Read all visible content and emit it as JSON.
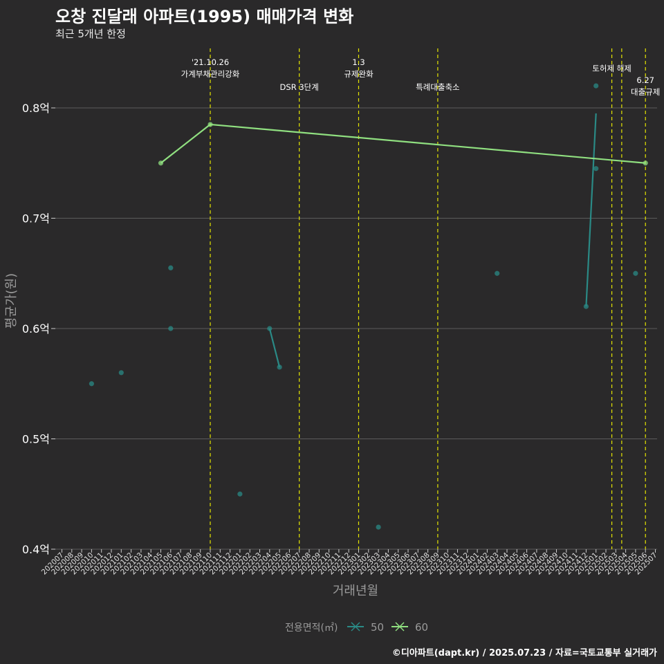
{
  "header": {
    "title": "오창 진달래 아파트(1995) 매매가격 변화",
    "subtitle": "최근 5개년 한정"
  },
  "caption": "©디아파트(dapt.kr) / 2025.07.23 / 자료=국토교통부 실거래가",
  "colors": {
    "background": "#2a292a",
    "grid": "#5c5c5c",
    "event_line": "#e6e600",
    "series_50": "#2a8a86",
    "series_60": "#90e080"
  },
  "chart_data": {
    "type": "line",
    "title": "오창 진달래 아파트(1995) 매매가격 변화",
    "subtitle": "최근 5개년 한정",
    "xlabel": "거래년월",
    "ylabel": "평균가(원)",
    "x_ticks": [
      "202007",
      "202008",
      "202009",
      "202010",
      "202011",
      "202012",
      "202101",
      "202102",
      "202103",
      "202104",
      "202105",
      "202106",
      "202107",
      "202108",
      "202109",
      "202110",
      "202111",
      "202112",
      "202201",
      "202202",
      "202203",
      "202204",
      "202205",
      "202206",
      "202207",
      "202208",
      "202209",
      "202210",
      "202211",
      "202212",
      "202301",
      "202302",
      "202303",
      "202304",
      "202305",
      "202306",
      "202307",
      "202308",
      "202309",
      "202310",
      "202311",
      "202312",
      "202401",
      "202402",
      "202403",
      "202404",
      "202405",
      "202406",
      "202407",
      "202408",
      "202409",
      "202410",
      "202411",
      "202412",
      "202501",
      "202502",
      "202503",
      "202504",
      "202505",
      "202506",
      "202507"
    ],
    "y_ticks": [
      {
        "value": 0.4,
        "label": "0.4억"
      },
      {
        "value": 0.5,
        "label": "0.5억"
      },
      {
        "value": 0.6,
        "label": "0.6억"
      },
      {
        "value": 0.7,
        "label": "0.7억"
      },
      {
        "value": 0.8,
        "label": "0.8억"
      }
    ],
    "ylim": [
      0.4,
      0.84
    ],
    "legend": {
      "title": "전용면적(㎡)",
      "position": "bottom"
    },
    "series": [
      {
        "name": "50",
        "color": "#2a8a86",
        "points": [
          {
            "x": 3.0,
            "y": 0.55
          },
          {
            "x": 6.0,
            "y": 0.56
          },
          {
            "x": 11.0,
            "y": 0.655
          },
          {
            "x": 11.0,
            "y": 0.6
          },
          {
            "x": 18.0,
            "y": 0.45
          },
          {
            "x": 21.0,
            "y": 0.6
          },
          {
            "x": 22.0,
            "y": 0.565
          },
          {
            "x": 32.0,
            "y": 0.42
          },
          {
            "x": 44.0,
            "y": 0.65
          },
          {
            "x": 53.0,
            "y": 0.62
          },
          {
            "x": 54.0,
            "y": 0.82
          },
          {
            "x": 54.0,
            "y": 0.745
          },
          {
            "x": 58.0,
            "y": 0.65
          }
        ],
        "line": [
          {
            "x": 21.0,
            "y": 0.6
          },
          {
            "x": 22.0,
            "y": 0.565
          },
          null,
          {
            "x": 53.0,
            "y": 0.62
          },
          {
            "x": 54.0,
            "y": 0.795
          }
        ]
      },
      {
        "name": "60",
        "color": "#90e080",
        "points": [
          {
            "x": 10.0,
            "y": 0.75
          },
          {
            "x": 15.0,
            "y": 0.785
          },
          {
            "x": 59.0,
            "y": 0.75
          }
        ],
        "line": [
          {
            "x": 10.0,
            "y": 0.75
          },
          {
            "x": 15.0,
            "y": 0.785
          },
          {
            "x": 59.0,
            "y": 0.75
          }
        ]
      }
    ],
    "events": [
      {
        "x": 15.0,
        "lines": [
          "'21.10.26",
          "가계부채관리강화"
        ],
        "row": "top"
      },
      {
        "x": 24.0,
        "lines": [
          "DSR 3단계"
        ],
        "row": "low"
      },
      {
        "x": 30.0,
        "lines": [
          "1.3",
          "규제완화"
        ],
        "row": "top"
      },
      {
        "x": 38.0,
        "lines": [
          "특례대출축소"
        ],
        "row": "low"
      },
      {
        "x": 55.6,
        "lines": [
          "토허제 해제"
        ],
        "row": "mid"
      },
      {
        "x": 56.6,
        "lines": [],
        "row": "none"
      },
      {
        "x": 59.0,
        "lines": [
          "6.27",
          "대출규제"
        ],
        "row": "mid"
      }
    ]
  }
}
